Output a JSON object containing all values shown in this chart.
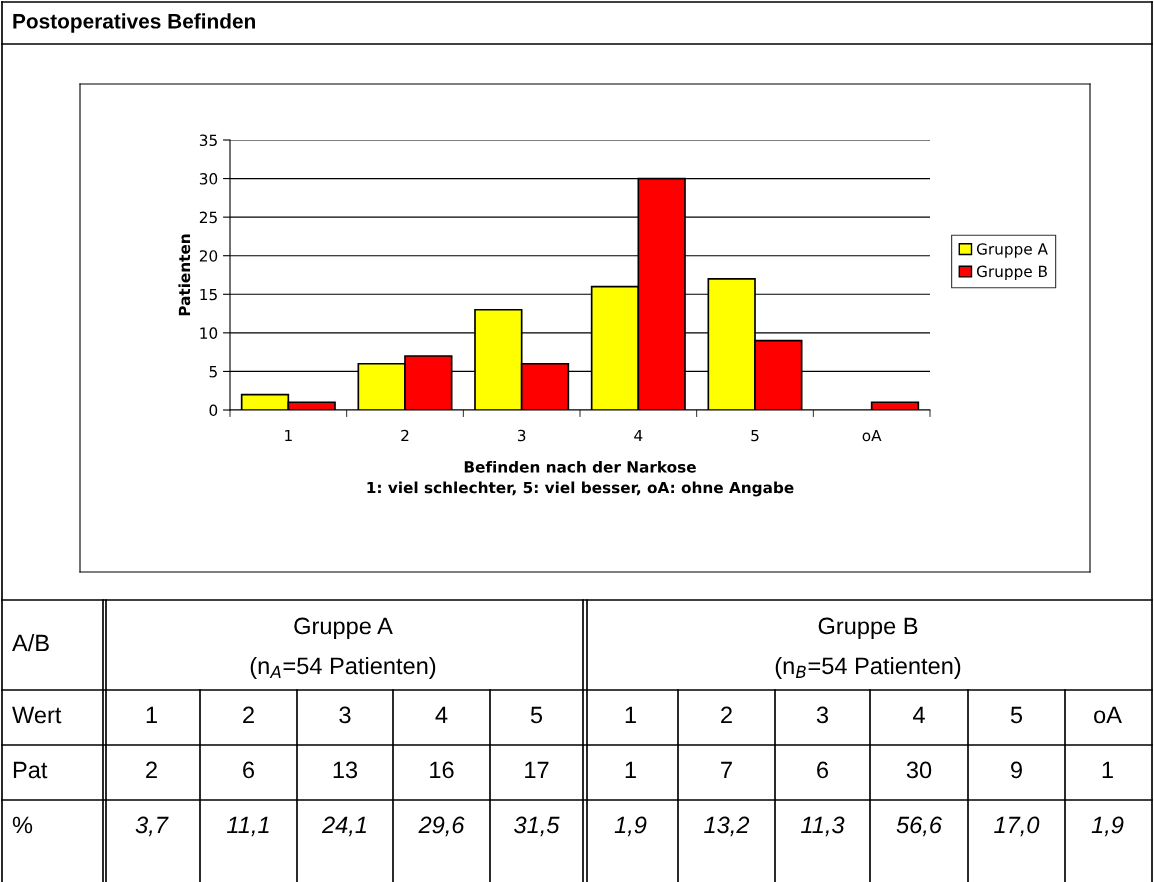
{
  "chart_data": {
    "type": "bar",
    "title": "Postoperatives Befinden",
    "xlabel": "Befinden nach der Narkose\n1: viel schlechter, 5: viel besser, oA: ohne Angabe",
    "ylabel": "Patienten",
    "categories": [
      "1",
      "2",
      "3",
      "4",
      "5",
      "oA"
    ],
    "series": [
      {
        "name": "Gruppe A",
        "color": "#ffff00",
        "values": [
          2,
          6,
          13,
          16,
          17,
          null
        ]
      },
      {
        "name": "Gruppe B",
        "color": "#ff0000",
        "values": [
          1,
          7,
          6,
          30,
          9,
          1
        ]
      }
    ],
    "ylim": [
      0,
      35
    ],
    "yticks": [
      0,
      5,
      10,
      15,
      20,
      25,
      30,
      35
    ],
    "grid": "y",
    "legend": "right",
    "annotations": [
      "A/B",
      "Gruppe A",
      "(n$_{A}$=54 Patienten)",
      "Gruppe B",
      "(n$_{B}$=54 Patienten)",
      "Wert",
      "Pat",
      "%",
      "1",
      "2",
      "3",
      "4",
      "5",
      "1",
      "2",
      "3",
      "4",
      "5",
      "oA",
      "2",
      "6",
      "13",
      "16",
      "17",
      "1",
      "7",
      "6",
      "30",
      "9",
      "1",
      "3,7",
      "11,1",
      "24,1",
      "29,6",
      "31,5",
      "1,9",
      "13,2",
      "11,3",
      "56,6",
      "17,0",
      "1,9"
    ]
  }
}
